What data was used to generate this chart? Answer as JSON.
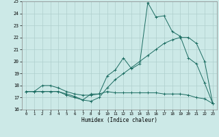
{
  "xlabel": "Humidex (Indice chaleur)",
  "xlim": [
    -0.5,
    23.5
  ],
  "ylim": [
    16,
    25
  ],
  "yticks": [
    16,
    17,
    18,
    19,
    20,
    21,
    22,
    23,
    24,
    25
  ],
  "xticks": [
    0,
    1,
    2,
    3,
    4,
    5,
    6,
    7,
    8,
    9,
    10,
    11,
    12,
    13,
    14,
    15,
    16,
    17,
    18,
    19,
    20,
    21,
    22,
    23
  ],
  "background_color": "#cce9e7",
  "grid_color": "#aecfcd",
  "line_color": "#1a6b60",
  "series": {
    "line1_x": [
      0,
      1,
      2,
      3,
      4,
      5,
      6,
      7,
      8,
      9,
      10,
      11,
      12,
      13,
      14,
      15,
      16,
      17,
      18,
      19,
      20,
      21,
      22,
      23
    ],
    "line1_y": [
      17.5,
      17.5,
      18.0,
      18.0,
      17.8,
      17.5,
      17.3,
      17.2,
      17.2,
      17.3,
      18.8,
      19.3,
      20.3,
      19.4,
      19.8,
      24.9,
      23.7,
      23.8,
      22.5,
      22.1,
      20.3,
      19.8,
      18.2,
      16.5
    ],
    "line2_x": [
      0,
      1,
      2,
      3,
      4,
      5,
      6,
      7,
      8,
      9,
      10,
      11,
      12,
      13,
      14,
      15,
      16,
      17,
      18,
      19,
      20,
      21,
      22,
      23
    ],
    "line2_y": [
      17.5,
      17.5,
      17.5,
      17.5,
      17.5,
      17.2,
      17.0,
      16.8,
      17.3,
      17.3,
      17.5,
      17.4,
      17.4,
      17.4,
      17.4,
      17.4,
      17.4,
      17.3,
      17.3,
      17.3,
      17.2,
      17.0,
      16.9,
      16.5
    ],
    "line3_x": [
      0,
      1,
      2,
      3,
      4,
      5,
      6,
      7,
      8,
      9,
      10,
      11,
      12,
      13,
      14,
      15,
      16,
      17,
      18,
      19,
      20,
      21,
      22,
      23
    ],
    "line3_y": [
      17.5,
      17.5,
      17.5,
      17.5,
      17.5,
      17.3,
      17.1,
      16.8,
      16.7,
      17.0,
      17.8,
      18.5,
      19.0,
      19.5,
      20.0,
      20.5,
      21.0,
      21.5,
      21.8,
      22.0,
      22.0,
      21.5,
      20.0,
      16.5
    ]
  }
}
